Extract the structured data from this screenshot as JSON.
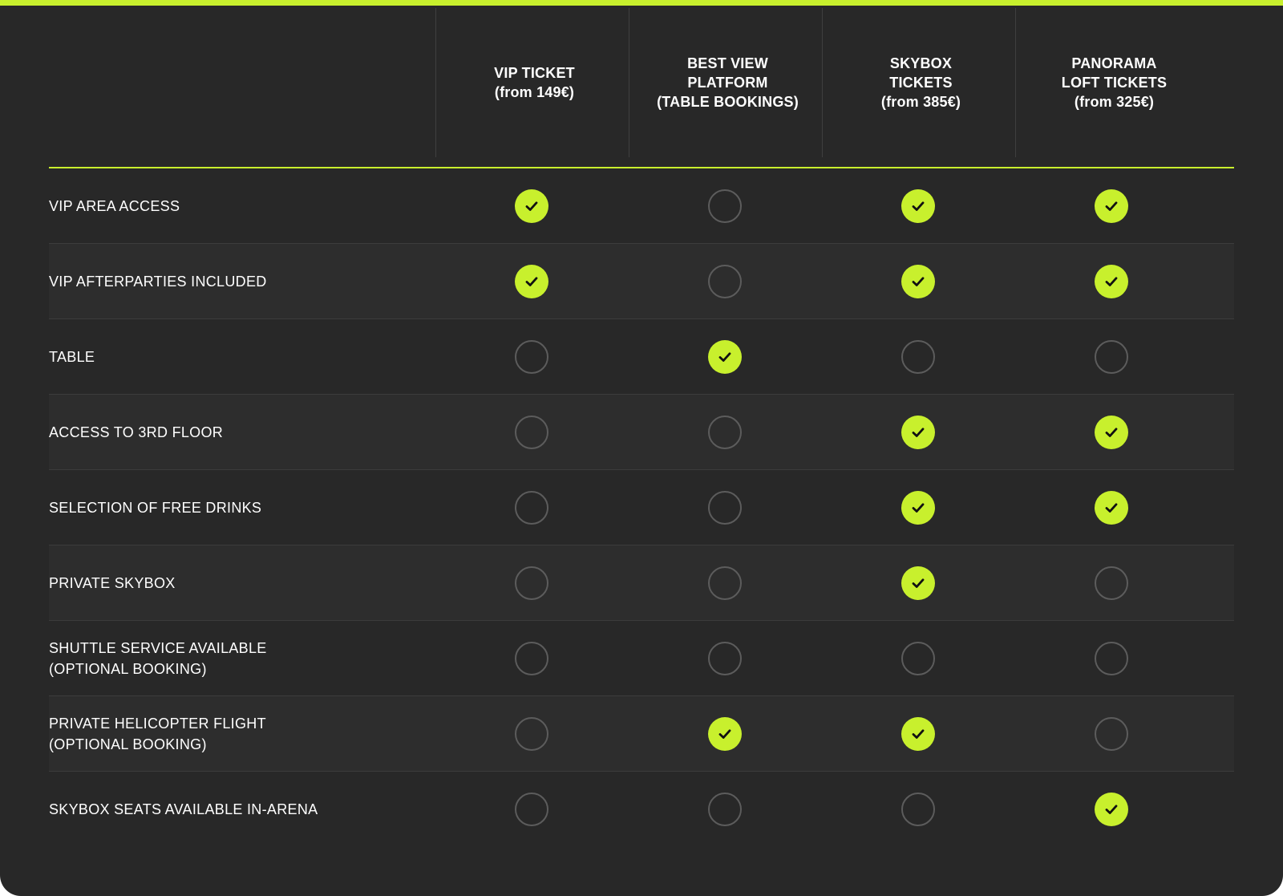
{
  "colors": {
    "accent": "#c8f02d",
    "background": "#282828",
    "row_alt": "#2d2d2d",
    "empty_circle": "#5c5c5c"
  },
  "columns": [
    {
      "label": "VIP TICKET\n(from 149€)"
    },
    {
      "label": "BEST VIEW\nPLATFORM\n(TABLE BOOKINGS)"
    },
    {
      "label": "SKYBOX\nTICKETS\n(from 385€)"
    },
    {
      "label": "PANORAMA\nLOFT TICKETS\n(from 325€)"
    }
  ],
  "rows": [
    {
      "feature": "VIP AREA ACCESS",
      "values": [
        true,
        false,
        true,
        true
      ]
    },
    {
      "feature": "VIP AFTERPARTIES INCLUDED",
      "values": [
        true,
        false,
        true,
        true
      ]
    },
    {
      "feature": "TABLE",
      "values": [
        false,
        true,
        false,
        false
      ]
    },
    {
      "feature": "ACCESS TO 3RD FLOOR",
      "values": [
        false,
        false,
        true,
        true
      ]
    },
    {
      "feature": "SELECTION OF FREE DRINKS",
      "values": [
        false,
        false,
        true,
        true
      ]
    },
    {
      "feature": "PRIVATE SKYBOX",
      "values": [
        false,
        false,
        true,
        false
      ]
    },
    {
      "feature": "SHUTTLE SERVICE AVAILABLE\n(OPTIONAL BOOKING)",
      "values": [
        false,
        false,
        false,
        false
      ]
    },
    {
      "feature": "PRIVATE HELICOPTER FLIGHT\n(OPTIONAL BOOKING)",
      "values": [
        false,
        true,
        true,
        false
      ]
    },
    {
      "feature": "SKYBOX SEATS AVAILABLE IN-ARENA",
      "values": [
        false,
        false,
        false,
        true
      ]
    }
  ],
  "icons": {
    "included": "check-circle-icon",
    "not_included": "empty-circle-icon"
  }
}
